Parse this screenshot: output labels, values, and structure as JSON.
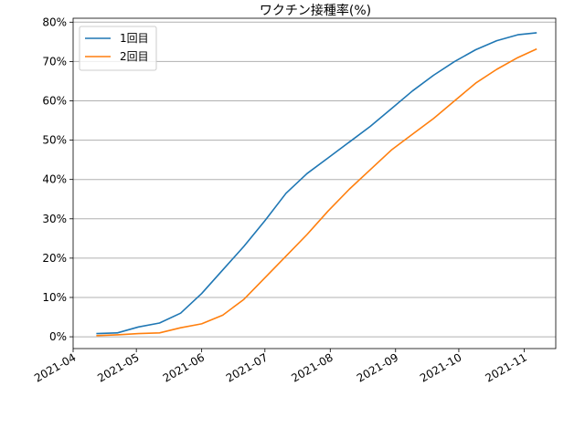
{
  "chart_data": {
    "type": "line",
    "title": "ワクチン接種率(%)",
    "xlabel": "",
    "ylabel": "",
    "x_axis": "date",
    "xlim": [
      "2021-04-01",
      "2021-11-16"
    ],
    "ylim": [
      -3,
      81
    ],
    "y_unit": "%",
    "grid": "horizontal",
    "legend_position": "top-left",
    "x_ticks": [
      "2021-04-01",
      "2021-05-01",
      "2021-06-01",
      "2021-07-01",
      "2021-08-01",
      "2021-09-01",
      "2021-10-01",
      "2021-11-01"
    ],
    "x_tick_labels": [
      "2021-04",
      "2021-05",
      "2021-06",
      "2021-07",
      "2021-08",
      "2021-09",
      "2021-10",
      "2021-11"
    ],
    "y_ticks": [
      0,
      10,
      20,
      30,
      40,
      50,
      60,
      70,
      80
    ],
    "y_tick_labels": [
      "0%",
      "10%",
      "20%",
      "30%",
      "40%",
      "50%",
      "60%",
      "70%",
      "80%"
    ],
    "series": [
      {
        "name": "1回目",
        "color": "#1f77b4",
        "points": [
          [
            "2021-04-12",
            0.8
          ],
          [
            "2021-04-22",
            1.0
          ],
          [
            "2021-05-02",
            2.5
          ],
          [
            "2021-05-12",
            3.5
          ],
          [
            "2021-05-22",
            6.0
          ],
          [
            "2021-06-01",
            11.0
          ],
          [
            "2021-06-11",
            17.0
          ],
          [
            "2021-06-21",
            23.0
          ],
          [
            "2021-07-01",
            29.5
          ],
          [
            "2021-07-11",
            36.5
          ],
          [
            "2021-07-21",
            41.5
          ],
          [
            "2021-07-31",
            45.5
          ],
          [
            "2021-08-10",
            49.5
          ],
          [
            "2021-08-20",
            53.5
          ],
          [
            "2021-08-30",
            58.0
          ],
          [
            "2021-09-09",
            62.5
          ],
          [
            "2021-09-19",
            66.5
          ],
          [
            "2021-09-29",
            70.0
          ],
          [
            "2021-10-09",
            73.0
          ],
          [
            "2021-10-19",
            75.3
          ],
          [
            "2021-10-29",
            76.8
          ],
          [
            "2021-11-07",
            77.3
          ]
        ]
      },
      {
        "name": "2回目",
        "color": "#ff7f0e",
        "points": [
          [
            "2021-04-12",
            0.3
          ],
          [
            "2021-04-22",
            0.5
          ],
          [
            "2021-05-02",
            0.8
          ],
          [
            "2021-05-12",
            1.0
          ],
          [
            "2021-05-22",
            2.3
          ],
          [
            "2021-06-01",
            3.3
          ],
          [
            "2021-06-11",
            5.5
          ],
          [
            "2021-06-21",
            9.5
          ],
          [
            "2021-07-01",
            15.0
          ],
          [
            "2021-07-11",
            20.5
          ],
          [
            "2021-07-21",
            26.0
          ],
          [
            "2021-07-31",
            32.0
          ],
          [
            "2021-08-10",
            37.5
          ],
          [
            "2021-08-20",
            42.5
          ],
          [
            "2021-08-30",
            47.5
          ],
          [
            "2021-09-09",
            51.5
          ],
          [
            "2021-09-19",
            55.5
          ],
          [
            "2021-09-29",
            60.0
          ],
          [
            "2021-10-09",
            64.5
          ],
          [
            "2021-10-19",
            68.0
          ],
          [
            "2021-10-29",
            71.0
          ],
          [
            "2021-11-07",
            73.2
          ]
        ]
      }
    ]
  }
}
